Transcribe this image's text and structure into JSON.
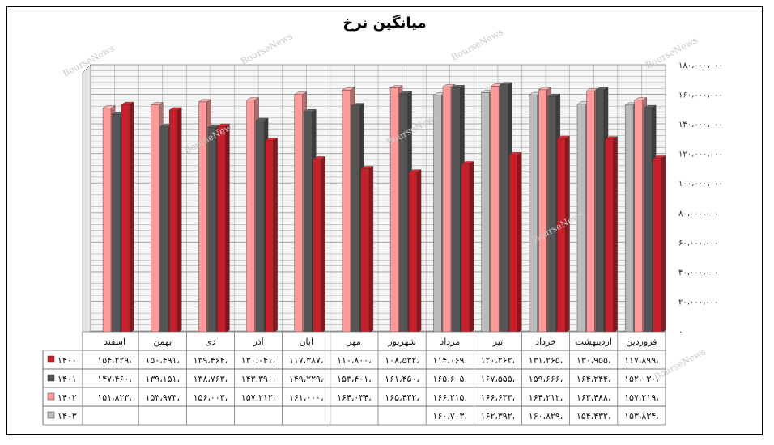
{
  "chart_data": {
    "type": "bar",
    "title": "میانگین نرخ",
    "categories": [
      "فروردین",
      "اردیبهشت",
      "خرداد",
      "تیر",
      "مرداد",
      "شهریور",
      "مهر",
      "آبان",
      "آذر",
      "دی",
      "بهمن",
      "اسفند"
    ],
    "ylim": [
      0,
      180000000
    ],
    "y_ticks": [
      "۰",
      "۲۰،۰۰۰،۰۰۰",
      "۴۰،۰۰۰،۰۰۰",
      "۶۰،۰۰۰،۰۰۰",
      "۸۰،۰۰۰،۰۰۰",
      "۱۰۰،۰۰۰،۰۰۰",
      "۱۲۰،۰۰۰،۰۰۰",
      "۱۴۰،۰۰۰،۰۰۰",
      "۱۶۰،۰۰۰،۰۰۰",
      "۱۸۰،۰۰۰،۰۰۰"
    ],
    "grid": true,
    "legend_placement": "table-left",
    "series": [
      {
        "name": "۱۴۰۰",
        "color": "#c8202a",
        "values": [
          117899000,
          130955000,
          131265000,
          120262000,
          114069000,
          108532000,
          110800000,
          117387000,
          130041000,
          139464000,
          150491000,
          154229000
        ],
        "labels": [
          "۱۱۷،۸۹۹،",
          "۱۳۰،۹۵۵،",
          "۱۳۱،۲۶۵،",
          "۱۲۰،۲۶۲،",
          "۱۱۴،۰۶۹،",
          "۱۰۸،۵۳۲،",
          "۱۱۰،۸۰۰،",
          "۱۱۷،۳۸۷،",
          "۱۳۰،۰۴۱،",
          "۱۳۹،۴۶۴،",
          "۱۵۰،۴۹۱،",
          "۱۵۴،۲۲۹،"
        ]
      },
      {
        "name": "۱۴۰۱",
        "color": "#555555",
        "values": [
          152030000,
          164244000,
          159666000,
          167555000,
          165605000,
          161450000,
          153401000,
          149229000,
          143390000,
          138763000,
          139151000,
          147460000
        ],
        "labels": [
          "۱۵۲،۰۳۰،",
          "۱۶۴،۲۴۴،",
          "۱۵۹،۶۶۶،",
          "۱۶۷،۵۵۵،",
          "۱۶۵،۶۰۵،",
          "۱۶۱،۴۵۰،",
          "۱۵۳،۴۰۱،",
          "۱۴۹،۲۲۹،",
          "۱۴۳،۳۹۰،",
          "۱۳۸،۷۶۳،",
          "۱۳۹،۱۵۱،",
          "۱۴۷،۴۶۰،"
        ]
      },
      {
        "name": "۱۴۰۲",
        "color": "#ff9a9a",
        "values": [
          157219000,
          163488000,
          164212000,
          166633000,
          166215000,
          165432000,
          164034000,
          161000000,
          157212000,
          156003000,
          153973000,
          151823000
        ],
        "labels": [
          "۱۵۷،۲۱۹،",
          "۱۶۳،۴۸۸،",
          "۱۶۴،۲۱۲،",
          "۱۶۶،۶۳۳،",
          "۱۶۶،۲۱۵،",
          "۱۶۵،۴۳۲،",
          "۱۶۴،۰۳۴،",
          "۱۶۱،۰۰۰،",
          "۱۵۷،۲۱۲،",
          "۱۵۶،۰۰۳،",
          "۱۵۳،۹۷۳،",
          "۱۵۱،۸۲۳،"
        ]
      },
      {
        "name": "۱۴۰۳",
        "color": "#bbbbbb",
        "values": [
          153834000,
          154432000,
          160829000,
          162392000,
          160703000,
          null,
          null,
          null,
          null,
          null,
          null,
          null
        ],
        "labels": [
          "۱۵۳،۸۳۴،",
          "۱۵۴،۴۳۲،",
          "۱۶۰،۸۲۹،",
          "۱۶۲،۳۹۲،",
          "۱۶۰،۷۰۳،",
          "",
          "",
          "",
          "",
          "",
          "",
          ""
        ]
      }
    ]
  },
  "watermark": "BourseNews"
}
